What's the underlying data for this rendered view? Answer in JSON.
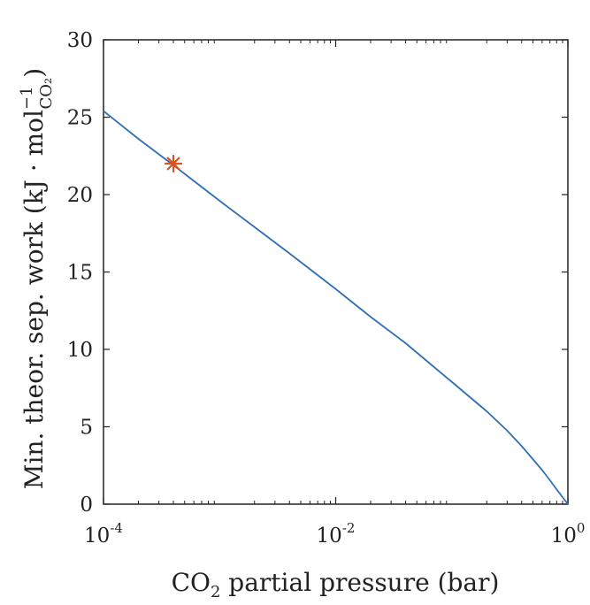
{
  "chart_data": {
    "type": "line",
    "xscale": "log",
    "xlim": [
      0.0001,
      1
    ],
    "ylim": [
      0,
      30
    ],
    "xticks": [
      {
        "base": "10",
        "exp": "-4"
      },
      {
        "base": "10",
        "exp": "-2"
      },
      {
        "base": "10",
        "exp": "0"
      }
    ],
    "yticks": [
      "0",
      "5",
      "10",
      "15",
      "20",
      "25",
      "30"
    ],
    "xlabel": {
      "pre": "CO",
      "sub": "2",
      "post": " partial pressure (bar)"
    },
    "ylabel": {
      "pre": "Min. theor. sep. work (kJ · mol",
      "sup": "−1",
      "sub": "CO₂",
      "post": ")"
    },
    "grid": false,
    "series": [
      {
        "color": "#2f6fb5",
        "x": [
          0.0001,
          0.0002,
          0.0004,
          0.001,
          0.002,
          0.004,
          0.01,
          0.02,
          0.04,
          0.1,
          0.2,
          0.3,
          0.4,
          0.5,
          0.6,
          0.7,
          0.8,
          0.9,
          0.95,
          0.98,
          1.0
        ],
        "y": [
          25.4,
          23.6,
          21.9,
          19.6,
          17.9,
          16.2,
          13.9,
          12.1,
          10.4,
          7.9,
          6.0,
          4.75,
          3.75,
          2.9,
          2.2,
          1.55,
          0.95,
          0.45,
          0.22,
          0.09,
          0.0
        ]
      }
    ],
    "markers": [
      {
        "x": 0.0004,
        "y": 22.0,
        "shape": "asterisk",
        "color": "#d9531e"
      }
    ]
  }
}
